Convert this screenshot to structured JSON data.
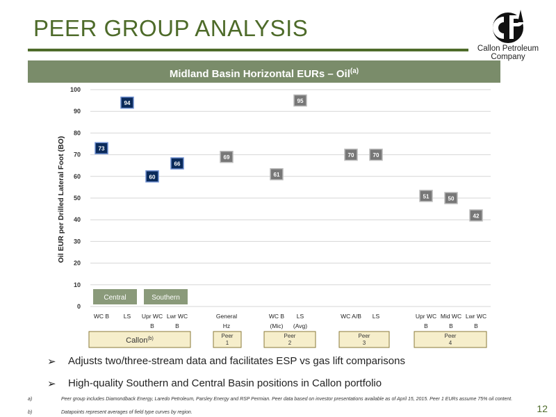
{
  "title": "PEER GROUP ANALYSIS",
  "logo": {
    "line1": "Callon Petroleum",
    "line2": "Company"
  },
  "banner": {
    "text": "Midland Basin Horizontal EURs – Oil",
    "sup": "(a)"
  },
  "chart_data": {
    "type": "scatter",
    "ylabel": "Oil EUR per Drilled Lateral Foot (BO)",
    "ylim": [
      0,
      100
    ],
    "yticks": [
      0,
      10,
      20,
      30,
      40,
      50,
      60,
      70,
      80,
      90,
      100
    ],
    "grid": true,
    "points": [
      {
        "label": "WC B",
        "value": 73,
        "group": "Callon"
      },
      {
        "label": "LS",
        "value": 94,
        "group": "Callon"
      },
      {
        "label": "Upr WC B",
        "value": 60,
        "group": "Callon"
      },
      {
        "label": "Lwr WC B",
        "value": 66,
        "group": "Callon"
      },
      {
        "label": "General Hz",
        "value": 69,
        "group": "Peer 1"
      },
      {
        "label": "WC B (Mic)",
        "value": 61,
        "group": "Peer 2"
      },
      {
        "label": "LS (Avg)",
        "value": 95,
        "group": "Peer 2"
      },
      {
        "label": "WC A/B",
        "value": 70,
        "group": "Peer 3"
      },
      {
        "label": "LS",
        "value": 70,
        "group": "Peer 3"
      },
      {
        "label": "Upr WC B",
        "value": 51,
        "group": "Peer 4"
      },
      {
        "label": "Mid WC B",
        "value": 50,
        "group": "Peer 4"
      },
      {
        "label": "Lwr WC B",
        "value": 42,
        "group": "Peer 4"
      }
    ],
    "region_labels": [
      "Central",
      "Southern"
    ],
    "groups": [
      {
        "label": "Callon",
        "sup": "(b)"
      },
      {
        "label": "Peer 1"
      },
      {
        "label": "Peer 2"
      },
      {
        "label": "Peer 3"
      },
      {
        "label": "Peer 4"
      }
    ],
    "colors": {
      "callon_fill": "#0a2a5a",
      "callon_border": "#6f8fd0",
      "peer_fill": "#777777",
      "peer_border": "#bbbbbb",
      "region": "#8a9a7a",
      "group_box": "#f6eecb",
      "group_border": "#8a7a3a"
    }
  },
  "bullets": [
    "Adjusts two/three-stream data and facilitates ESP vs gas lift comparisons",
    "High-quality Southern and Central Basin positions in Callon portfolio"
  ],
  "footnotes": [
    {
      "label": "a)",
      "text": "Peer group includes Diamondback Energy, Laredo Petroleum, Parsley Energy and RSP Permian. Peer data based on investor presentations available as of April 15, 2015. Peer 1 EURs assume 75% oil content."
    },
    {
      "label": "b)",
      "text": "Datapoints represent averages of field type curves by region."
    }
  ],
  "page_number": "12"
}
